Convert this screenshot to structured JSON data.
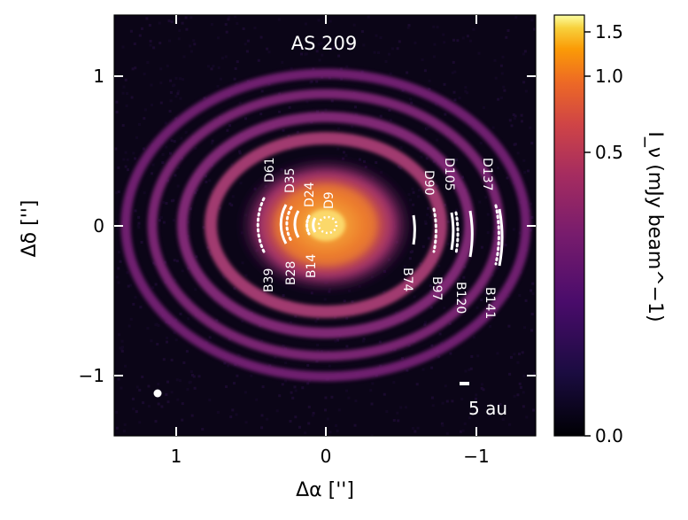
{
  "image": {
    "title": "AS 209",
    "scale_bar_label": "5 au",
    "xlabel": "Δα ['']",
    "ylabel": "Δδ ['']",
    "x_ticks": [
      "1",
      "0",
      "−1"
    ],
    "y_ticks": [
      "1",
      "0",
      "−1"
    ],
    "colorbar": {
      "label": "I_ν (mJy beam^−1)",
      "ticks": [
        "1.5",
        "1.0",
        "0.5",
        "0.0"
      ],
      "colormap": "inferno"
    },
    "features": {
      "gaps": [
        "D9",
        "D24",
        "D35",
        "D61",
        "D90",
        "D105",
        "D137"
      ],
      "rings": [
        "B14",
        "B28",
        "B39",
        "B74",
        "B97",
        "B120",
        "B141"
      ]
    },
    "colors": {
      "background": "#0b0517",
      "ring": "#8a2a7e",
      "core": "#f8b23a",
      "annotation": "#ffffff"
    }
  }
}
